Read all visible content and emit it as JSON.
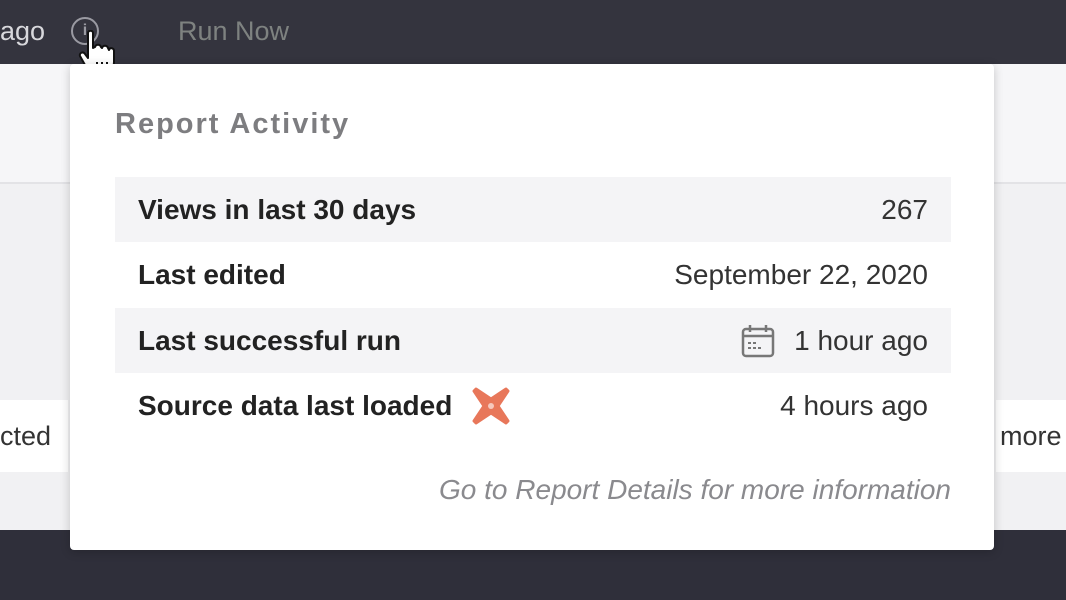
{
  "header": {
    "ago_text": "ago",
    "run_now": "Run Now",
    "info_glyph": "i"
  },
  "background": {
    "left_card": "cted",
    "right_card": "more"
  },
  "popover": {
    "title": "Report Activity",
    "rows": [
      {
        "label": "Views in last 30 days",
        "value": "267"
      },
      {
        "label": "Last edited",
        "value": "September 22, 2020"
      },
      {
        "label": "Last successful run",
        "value": "1 hour ago",
        "icon": "calendar-icon"
      },
      {
        "label": "Source data last loaded",
        "value": "4 hours ago",
        "icon": "dbt-logo-icon"
      }
    ],
    "footer": "Go to Report Details for more information"
  },
  "colors": {
    "topbar": "#34343e",
    "dbt_orange": "#e8775a"
  }
}
